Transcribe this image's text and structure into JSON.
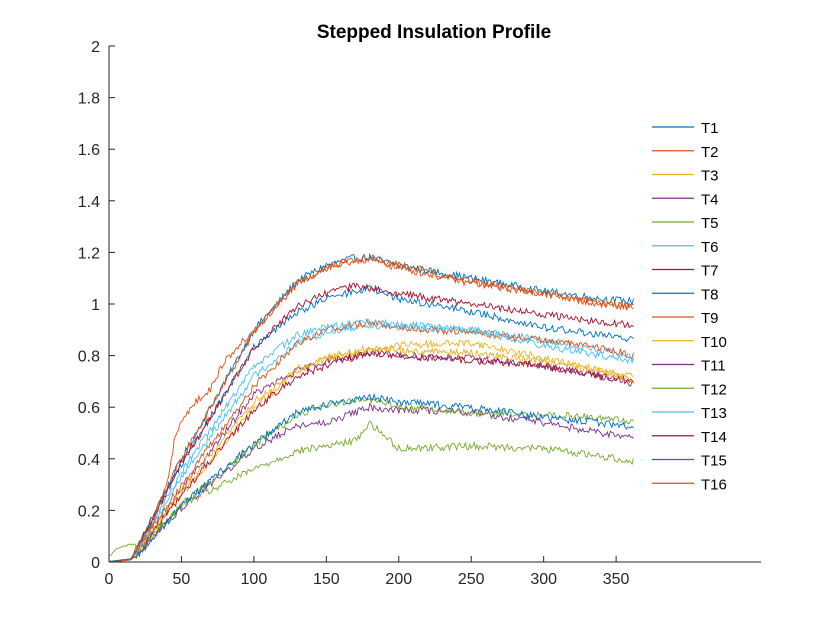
{
  "chart_data": {
    "type": "line",
    "title": "Stepped Insulation Profile",
    "xlabel": "",
    "ylabel": "",
    "xlim": [
      0,
      450
    ],
    "ylim": [
      0,
      2
    ],
    "xticks": [
      "0",
      "50",
      "100",
      "150",
      "200",
      "250",
      "300",
      "350"
    ],
    "xtick_values": [
      0,
      50,
      100,
      150,
      200,
      250,
      300,
      350
    ],
    "yticks": [
      "0",
      "0.2",
      "0.4",
      "0.6",
      "0.8",
      "1",
      "1.2",
      "1.4",
      "1.6",
      "1.8",
      "2"
    ],
    "ytick_values": [
      0,
      0.2,
      0.4,
      0.6,
      0.8,
      1.0,
      1.2,
      1.4,
      1.6,
      1.8,
      2.0
    ],
    "grid": false,
    "legend_position": "right",
    "series": [
      {
        "name": "T1",
        "color": "#0072BD",
        "points": [
          [
            0,
            0
          ],
          [
            15,
            0.01
          ],
          [
            20,
            0.06
          ],
          [
            50,
            0.4
          ],
          [
            100,
            0.9
          ],
          [
            130,
            1.09
          ],
          [
            150,
            1.15
          ],
          [
            170,
            1.18
          ],
          [
            180,
            1.18
          ],
          [
            200,
            1.15
          ],
          [
            250,
            1.1
          ],
          [
            300,
            1.05
          ],
          [
            340,
            1.02
          ],
          [
            362,
            1.01
          ]
        ]
      },
      {
        "name": "T2",
        "color": "#D95319",
        "points": [
          [
            0,
            0
          ],
          [
            15,
            0.01
          ],
          [
            20,
            0.06
          ],
          [
            50,
            0.4
          ],
          [
            100,
            0.89
          ],
          [
            130,
            1.08
          ],
          [
            150,
            1.14
          ],
          [
            170,
            1.17
          ],
          [
            180,
            1.17
          ],
          [
            200,
            1.14
          ],
          [
            250,
            1.08
          ],
          [
            300,
            1.04
          ],
          [
            340,
            1.0
          ],
          [
            362,
            0.99
          ]
        ]
      },
      {
        "name": "T3",
        "color": "#EDB120",
        "points": [
          [
            0,
            0
          ],
          [
            15,
            0.01
          ],
          [
            20,
            0.04
          ],
          [
            50,
            0.26
          ],
          [
            100,
            0.6
          ],
          [
            130,
            0.74
          ],
          [
            150,
            0.79
          ],
          [
            180,
            0.82
          ],
          [
            200,
            0.84
          ],
          [
            250,
            0.85
          ],
          [
            300,
            0.79
          ],
          [
            340,
            0.74
          ],
          [
            362,
            0.72
          ]
        ]
      },
      {
        "name": "T4",
        "color": "#7E2F8E",
        "points": [
          [
            0,
            0
          ],
          [
            15,
            0.01
          ],
          [
            20,
            0.04
          ],
          [
            50,
            0.28
          ],
          [
            100,
            0.65
          ],
          [
            130,
            0.74
          ],
          [
            150,
            0.78
          ],
          [
            180,
            0.81
          ],
          [
            200,
            0.8
          ],
          [
            250,
            0.79
          ],
          [
            300,
            0.76
          ],
          [
            340,
            0.72
          ],
          [
            362,
            0.69
          ]
        ]
      },
      {
        "name": "T5",
        "color": "#77AC30",
        "points": [
          [
            0,
            0.02
          ],
          [
            5,
            0.05
          ],
          [
            15,
            0.07
          ],
          [
            20,
            0.06
          ],
          [
            50,
            0.22
          ],
          [
            100,
            0.36
          ],
          [
            130,
            0.43
          ],
          [
            150,
            0.45
          ],
          [
            170,
            0.47
          ],
          [
            180,
            0.54
          ],
          [
            200,
            0.44
          ],
          [
            250,
            0.45
          ],
          [
            300,
            0.44
          ],
          [
            340,
            0.41
          ],
          [
            362,
            0.39
          ]
        ]
      },
      {
        "name": "T6",
        "color": "#4DBEEE",
        "points": [
          [
            0,
            0
          ],
          [
            15,
            0.01
          ],
          [
            20,
            0.05
          ],
          [
            50,
            0.33
          ],
          [
            100,
            0.72
          ],
          [
            130,
            0.85
          ],
          [
            150,
            0.89
          ],
          [
            180,
            0.92
          ],
          [
            200,
            0.91
          ],
          [
            250,
            0.9
          ],
          [
            300,
            0.86
          ],
          [
            340,
            0.82
          ],
          [
            362,
            0.79
          ]
        ]
      },
      {
        "name": "T7",
        "color": "#A2142F",
        "points": [
          [
            0,
            0
          ],
          [
            15,
            0.01
          ],
          [
            20,
            0.04
          ],
          [
            50,
            0.26
          ],
          [
            100,
            0.59
          ],
          [
            130,
            0.72
          ],
          [
            150,
            0.76
          ],
          [
            180,
            0.81
          ],
          [
            200,
            0.8
          ],
          [
            250,
            0.78
          ],
          [
            300,
            0.76
          ],
          [
            340,
            0.72
          ],
          [
            362,
            0.7
          ]
        ]
      },
      {
        "name": "T8",
        "color": "#0072BD",
        "points": [
          [
            0,
            0
          ],
          [
            15,
            0.01
          ],
          [
            20,
            0.06
          ],
          [
            50,
            0.38
          ],
          [
            100,
            0.83
          ],
          [
            130,
            0.97
          ],
          [
            150,
            1.02
          ],
          [
            170,
            1.05
          ],
          [
            180,
            1.06
          ],
          [
            200,
            1.02
          ],
          [
            250,
            0.97
          ],
          [
            300,
            0.91
          ],
          [
            340,
            0.88
          ],
          [
            362,
            0.86
          ]
        ]
      },
      {
        "name": "T9",
        "color": "#D95319",
        "points": [
          [
            0,
            0
          ],
          [
            15,
            0.01
          ],
          [
            20,
            0.05
          ],
          [
            50,
            0.3
          ],
          [
            100,
            0.68
          ],
          [
            130,
            0.85
          ],
          [
            150,
            0.9
          ],
          [
            180,
            0.93
          ],
          [
            200,
            0.91
          ],
          [
            250,
            0.89
          ],
          [
            300,
            0.86
          ],
          [
            340,
            0.83
          ],
          [
            362,
            0.8
          ]
        ]
      },
      {
        "name": "T10",
        "color": "#EDB120",
        "points": [
          [
            0,
            0
          ],
          [
            15,
            0.01
          ],
          [
            20,
            0.04
          ],
          [
            50,
            0.28
          ],
          [
            100,
            0.62
          ],
          [
            130,
            0.75
          ],
          [
            150,
            0.79
          ],
          [
            180,
            0.83
          ],
          [
            200,
            0.82
          ],
          [
            250,
            0.81
          ],
          [
            300,
            0.78
          ],
          [
            340,
            0.74
          ],
          [
            362,
            0.7
          ]
        ]
      },
      {
        "name": "T11",
        "color": "#7E2F8E",
        "points": [
          [
            0,
            0
          ],
          [
            15,
            0.01
          ],
          [
            20,
            0.03
          ],
          [
            50,
            0.21
          ],
          [
            100,
            0.44
          ],
          [
            130,
            0.53
          ],
          [
            150,
            0.54
          ],
          [
            180,
            0.6
          ],
          [
            200,
            0.59
          ],
          [
            250,
            0.58
          ],
          [
            300,
            0.54
          ],
          [
            340,
            0.5
          ],
          [
            362,
            0.48
          ]
        ]
      },
      {
        "name": "T12",
        "color": "#77AC30",
        "points": [
          [
            0,
            0
          ],
          [
            15,
            0.01
          ],
          [
            20,
            0.03
          ],
          [
            50,
            0.22
          ],
          [
            100,
            0.45
          ],
          [
            130,
            0.57
          ],
          [
            150,
            0.61
          ],
          [
            180,
            0.63
          ],
          [
            200,
            0.6
          ],
          [
            250,
            0.58
          ],
          [
            300,
            0.57
          ],
          [
            340,
            0.56
          ],
          [
            362,
            0.54
          ]
        ]
      },
      {
        "name": "T13",
        "color": "#4DBEEE",
        "points": [
          [
            0,
            0
          ],
          [
            15,
            0.01
          ],
          [
            20,
            0.05
          ],
          [
            50,
            0.35
          ],
          [
            100,
            0.76
          ],
          [
            130,
            0.88
          ],
          [
            150,
            0.91
          ],
          [
            180,
            0.93
          ],
          [
            200,
            0.92
          ],
          [
            250,
            0.9
          ],
          [
            300,
            0.84
          ],
          [
            340,
            0.8
          ],
          [
            362,
            0.78
          ]
        ]
      },
      {
        "name": "T14",
        "color": "#A2142F",
        "points": [
          [
            0,
            0
          ],
          [
            15,
            0.01
          ],
          [
            20,
            0.06
          ],
          [
            50,
            0.38
          ],
          [
            100,
            0.83
          ],
          [
            130,
            0.99
          ],
          [
            150,
            1.04
          ],
          [
            170,
            1.07
          ],
          [
            180,
            1.06
          ],
          [
            200,
            1.04
          ],
          [
            250,
            1.0
          ],
          [
            300,
            0.96
          ],
          [
            340,
            0.93
          ],
          [
            362,
            0.92
          ]
        ]
      },
      {
        "name": "T15",
        "color": "#0072BD",
        "points": [
          [
            0,
            0
          ],
          [
            15,
            0.01
          ],
          [
            20,
            0.03
          ],
          [
            50,
            0.22
          ],
          [
            100,
            0.46
          ],
          [
            130,
            0.58
          ],
          [
            150,
            0.61
          ],
          [
            180,
            0.64
          ],
          [
            200,
            0.62
          ],
          [
            250,
            0.6
          ],
          [
            300,
            0.56
          ],
          [
            340,
            0.54
          ],
          [
            362,
            0.52
          ]
        ]
      },
      {
        "name": "T16",
        "color": "#D95319",
        "points": [
          [
            0,
            0
          ],
          [
            15,
            0.01
          ],
          [
            20,
            0.06
          ],
          [
            30,
            0.15
          ],
          [
            40,
            0.3
          ],
          [
            45,
            0.47
          ],
          [
            50,
            0.55
          ],
          [
            60,
            0.62
          ],
          [
            70,
            0.67
          ],
          [
            80,
            0.78
          ],
          [
            100,
            0.9
          ],
          [
            130,
            1.08
          ],
          [
            150,
            1.14
          ],
          [
            170,
            1.17
          ],
          [
            180,
            1.18
          ],
          [
            200,
            1.15
          ],
          [
            250,
            1.09
          ],
          [
            300,
            1.04
          ],
          [
            340,
            1.0
          ],
          [
            362,
            0.99
          ]
        ]
      }
    ]
  }
}
